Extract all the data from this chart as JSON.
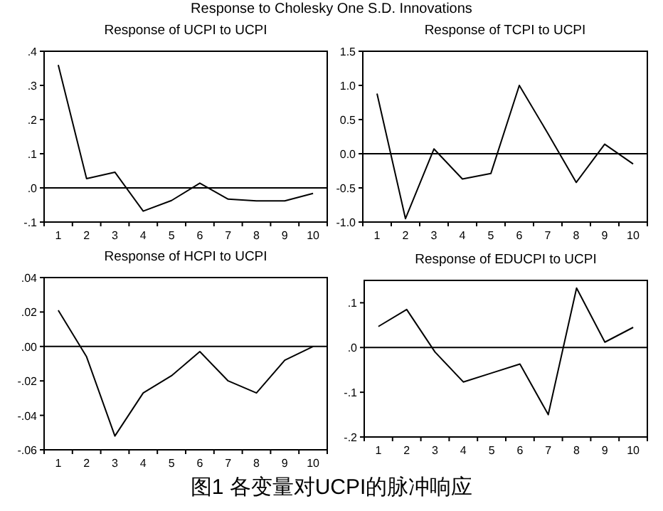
{
  "chart_data": [
    {
      "type": "line",
      "title": "Response of UCPI to UCPI",
      "annotations": [
        "Response to Cholesky One S.D. Innovations"
      ],
      "categories": [
        "1",
        "2",
        "3",
        "4",
        "5",
        "6",
        "7",
        "8",
        "9",
        "10"
      ],
      "series": [
        {
          "color": "#000000",
          "values": [
            0.36,
            0.027,
            0.046,
            -0.068,
            -0.037,
            0.014,
            -0.033,
            -0.038,
            -0.038,
            -0.016
          ]
        }
      ],
      "ylim": [
        -0.1,
        0.4
      ],
      "yticks": [
        {
          "value": -0.1,
          "label": "-.1"
        },
        {
          "value": 0,
          "label": ".0"
        },
        {
          "value": 0.1,
          "label": ".1"
        },
        {
          "value": 0.2,
          "label": ".2"
        },
        {
          "value": 0.3,
          "label": ".3"
        },
        {
          "value": 0.4,
          "label": ".4"
        }
      ],
      "ref_lines": [
        {
          "axis": "y",
          "value": 0,
          "color": "#000000"
        }
      ],
      "grid": false,
      "marker": "none",
      "line_style": "solid"
    },
    {
      "type": "line",
      "title": "Response of TCPI to UCPI",
      "categories": [
        "1",
        "2",
        "3",
        "4",
        "5",
        "6",
        "7",
        "8",
        "9",
        "10"
      ],
      "series": [
        {
          "color": "#000000",
          "values": [
            0.88,
            -0.95,
            0.07,
            -0.37,
            -0.29,
            1.0,
            0.3,
            -0.42,
            0.14,
            -0.15
          ]
        }
      ],
      "ylim": [
        -1,
        1.5
      ],
      "yticks": [
        {
          "value": -1,
          "label": "-1.0"
        },
        {
          "value": -0.5,
          "label": "-0.5"
        },
        {
          "value": 0,
          "label": "0.0"
        },
        {
          "value": 0.5,
          "label": "0.5"
        },
        {
          "value": 1,
          "label": "1.0"
        },
        {
          "value": 1.5,
          "label": "1.5"
        }
      ],
      "ref_lines": [
        {
          "axis": "y",
          "value": 0,
          "color": "#000000"
        }
      ],
      "grid": false,
      "marker": "none",
      "line_style": "solid"
    },
    {
      "type": "line",
      "title": "Response of HCPI to UCPI",
      "categories": [
        "1",
        "2",
        "3",
        "4",
        "5",
        "6",
        "7",
        "8",
        "9",
        "10"
      ],
      "series": [
        {
          "color": "#000000",
          "values": [
            0.021,
            -0.006,
            -0.052,
            -0.027,
            -0.017,
            -0.003,
            -0.02,
            -0.027,
            -0.008,
            0.0
          ]
        }
      ],
      "ylim": [
        -0.06,
        0.04
      ],
      "yticks": [
        {
          "value": -0.06,
          "label": "-.06"
        },
        {
          "value": -0.04,
          "label": "-.04"
        },
        {
          "value": -0.02,
          "label": "-.02"
        },
        {
          "value": 0,
          "label": ".00"
        },
        {
          "value": 0.02,
          "label": ".02"
        },
        {
          "value": 0.04,
          "label": ".04"
        }
      ],
      "ref_lines": [
        {
          "axis": "y",
          "value": 0,
          "color": "#000000"
        }
      ],
      "grid": false,
      "marker": "none",
      "line_style": "solid"
    },
    {
      "type": "line",
      "title": "Response of EDUCPI to UCPI",
      "annotations": [
        "图1  各变量对UCPI的脉冲响应"
      ],
      "categories": [
        "1",
        "2",
        "3",
        "4",
        "5",
        "6",
        "7",
        "8",
        "9",
        "10"
      ],
      "series": [
        {
          "color": "#000000",
          "values": [
            0.047,
            0.085,
            -0.01,
            -0.077,
            -0.057,
            -0.037,
            -0.15,
            0.133,
            0.012,
            0.045
          ]
        }
      ],
      "ylim": [
        -0.2,
        0.15
      ],
      "yticks": [
        {
          "value": -0.2,
          "label": "-.2"
        },
        {
          "value": -0.1,
          "label": "-.1"
        },
        {
          "value": 0,
          "label": ".0"
        },
        {
          "value": 0.1,
          "label": ".1"
        }
      ],
      "ref_lines": [
        {
          "axis": "y",
          "value": 0,
          "color": "#000000"
        }
      ],
      "grid": false,
      "marker": "none",
      "line_style": "solid"
    }
  ]
}
